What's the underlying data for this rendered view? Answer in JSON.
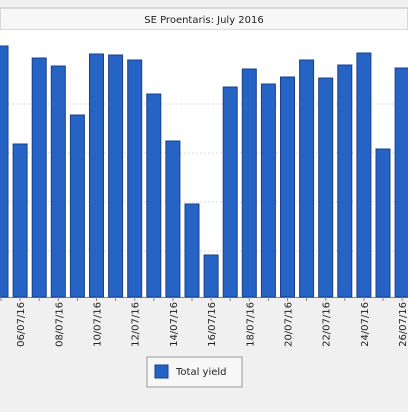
{
  "chart_data": {
    "type": "bar",
    "title": "SE Proentaris: July 2016",
    "categories": [
      null,
      "06/07/16",
      null,
      "08/07/16",
      null,
      "10/07/16",
      null,
      "12/07/16",
      null,
      "14/07/16",
      null,
      "16/07/16",
      null,
      "18/07/16",
      null,
      "20/07/16",
      null,
      "22/07/16",
      null,
      "24/07/16",
      null,
      "26/07/16"
    ],
    "series": [
      {
        "name": "Total yield",
        "color": "#2563c5",
        "values": [
          251,
          153,
          239,
          231,
          182,
          243,
          242,
          237,
          203,
          156,
          93,
          42,
          210,
          228,
          213,
          220,
          237,
          219,
          232,
          244,
          148,
          229
        ]
      }
    ],
    "ylim": [
      0,
      267
    ]
  }
}
